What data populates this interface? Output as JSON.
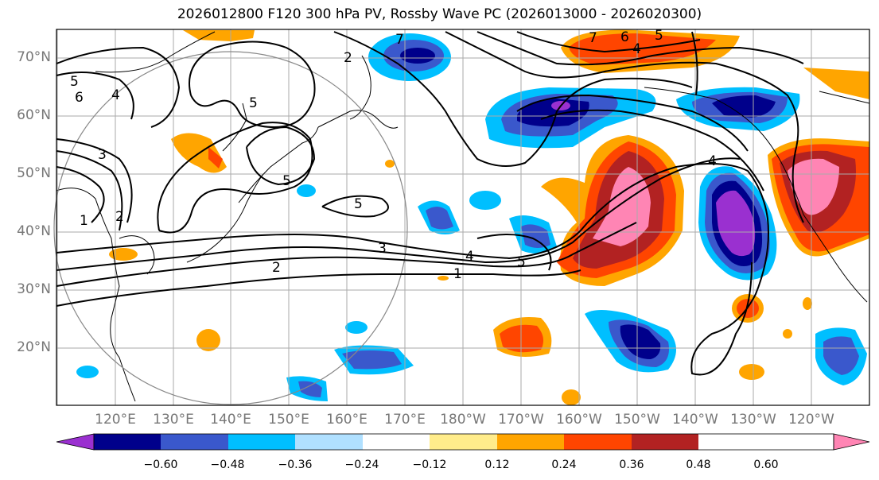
{
  "title": "2026012800 F120 300 hPa PV, Rossby Wave PC (2026013000 - 2026020300)",
  "lat_labels": [
    "70°N",
    "60°N",
    "50°N",
    "40°N",
    "30°N",
    "20°N"
  ],
  "lon_labels": [
    "120°E",
    "130°E",
    "140°E",
    "150°E",
    "160°E",
    "170°E",
    "180°W",
    "170°W",
    "160°W",
    "150°W",
    "140°W",
    "130°W",
    "120°W"
  ],
  "contour_labels": [
    "1",
    "2",
    "3",
    "4",
    "5",
    "6",
    "7"
  ],
  "colorbar": {
    "ticks": [
      "−0.60",
      "−0.48",
      "−0.36",
      "−0.24",
      "−0.12",
      "0.12",
      "0.24",
      "0.36",
      "0.48",
      "0.60"
    ],
    "colors": [
      "#9a30d0",
      "#00008b",
      "#3a58cc",
      "#00bfff",
      "#b0e0ff",
      "#ffffff",
      "#ffec8b",
      "#ffa500",
      "#ff4500",
      "#b22222",
      "#ff85b4"
    ]
  }
}
